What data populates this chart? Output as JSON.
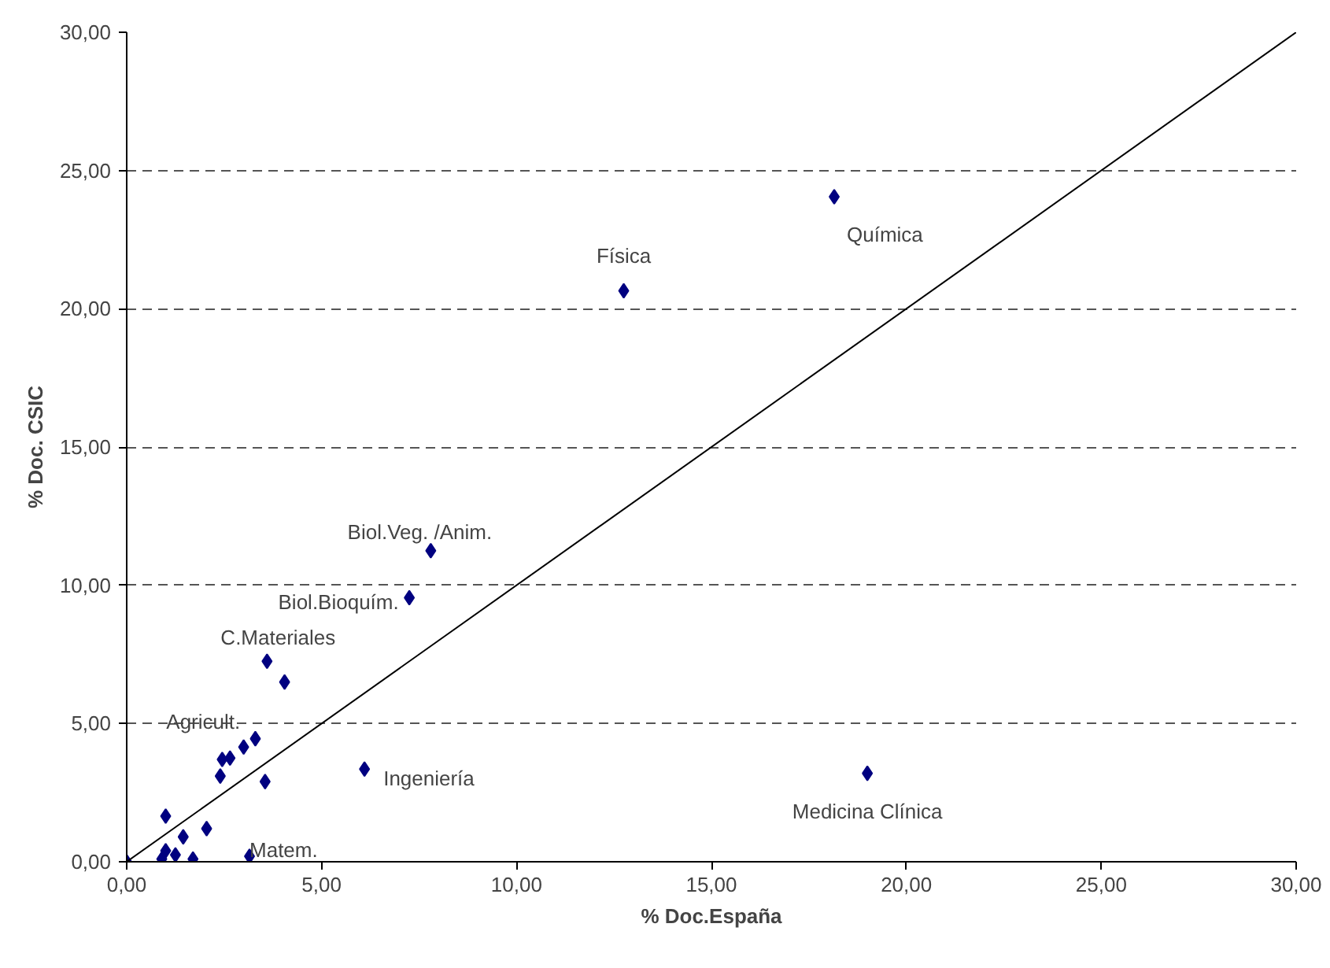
{
  "chart_data": {
    "type": "scatter",
    "xlabel": "% Doc.España",
    "ylabel": "% Doc. CSIC",
    "grid": "y",
    "xlim": [
      0,
      30
    ],
    "ylim": [
      0,
      30
    ],
    "xticks": [
      {
        "value": 0,
        "label": "0,00"
      },
      {
        "value": 5,
        "label": "5,00"
      },
      {
        "value": 10,
        "label": "10,00"
      },
      {
        "value": 15,
        "label": "15,00"
      },
      {
        "value": 20,
        "label": "20,00"
      },
      {
        "value": 25,
        "label": "25,00"
      },
      {
        "value": 30,
        "label": "30,00"
      }
    ],
    "yticks": [
      {
        "value": 0,
        "label": "0,00"
      },
      {
        "value": 5,
        "label": "5,00"
      },
      {
        "value": 10,
        "label": "10,00"
      },
      {
        "value": 15,
        "label": "15,00"
      },
      {
        "value": 20,
        "label": "20,00"
      },
      {
        "value": 25,
        "label": "25,00"
      },
      {
        "value": 30,
        "label": "30,00"
      }
    ],
    "series": [
      {
        "marker": "diamond",
        "color": "#000080",
        "x": [
          0,
          0.9,
          1.0,
          1.25,
          1.7,
          1.45,
          1.0,
          2.05,
          3.15,
          2.4,
          2.45,
          2.65,
          3.0,
          3.3,
          3.55,
          3.6,
          4.05,
          6.1,
          7.25,
          7.8,
          12.75,
          18.15,
          19.0
        ],
        "values": [
          0,
          0.1,
          0.4,
          0.25,
          0.1,
          0.9,
          1.65,
          1.2,
          0.2,
          3.1,
          3.7,
          3.75,
          4.15,
          4.45,
          2.9,
          7.25,
          6.5,
          3.35,
          9.55,
          11.25,
          20.65,
          24.05,
          3.2
        ]
      },
      {
        "type": "line",
        "line_style": "solid",
        "color": "#000000",
        "x": [
          0,
          30
        ],
        "values": [
          0,
          30
        ]
      }
    ],
    "annotations": [
      {
        "text": "Física",
        "x": 12.75,
        "y": 20.65
      },
      {
        "text": "Química",
        "x": 18.15,
        "y": 24.05
      },
      {
        "text": "Medicina Clínica",
        "x": 19.0,
        "y": 3.2
      },
      {
        "text": "Ingeniería",
        "x": 6.1,
        "y": 3.35
      },
      {
        "text": "Matem.",
        "x": 3.15,
        "y": 0.2
      },
      {
        "text": "Biol.Veg. /Anim.",
        "x": 7.8,
        "y": 11.25
      },
      {
        "text": "Biol.Bioquím.",
        "x": 7.25,
        "y": 9.55
      },
      {
        "text": "C.Materiales",
        "x": 3.6,
        "y": 7.25
      },
      {
        "text": "Agricult.",
        "x": 2.65,
        "y": 3.75
      }
    ]
  }
}
